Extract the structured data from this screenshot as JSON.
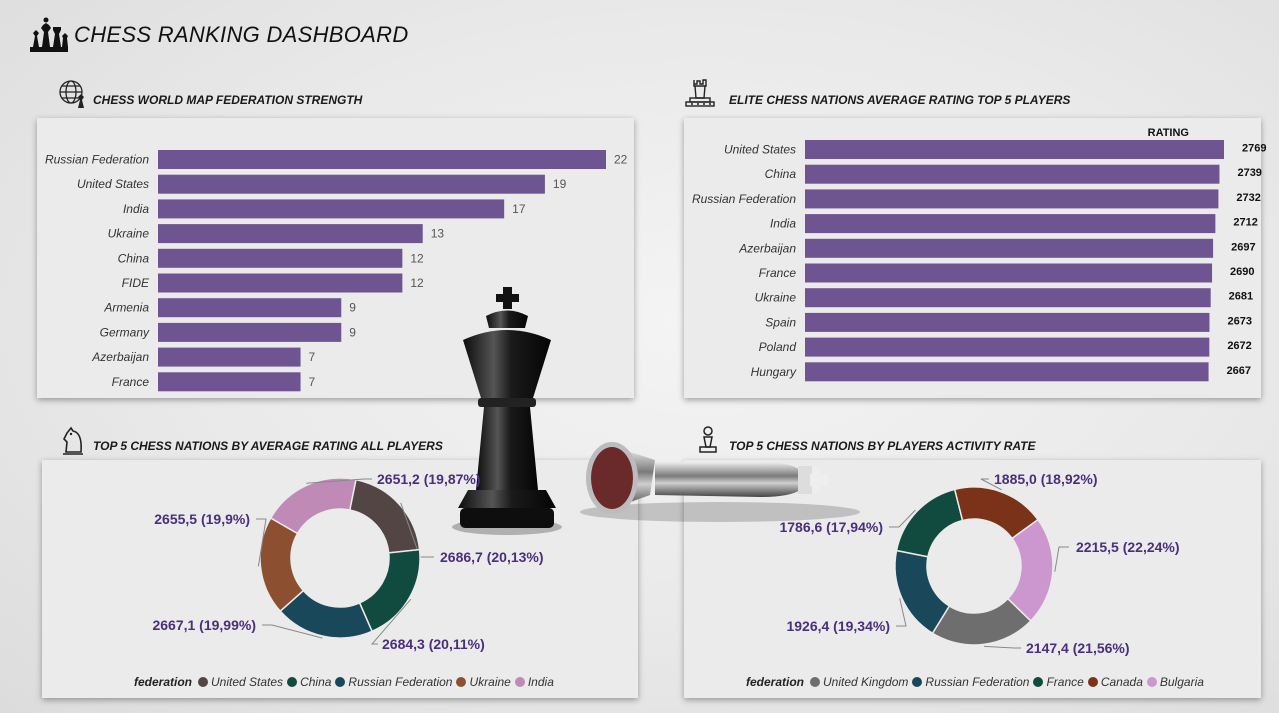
{
  "title": "CHESS RANKING DASHBOARD",
  "sections": {
    "s1": "CHESS WORLD MAP FEDERATION STRENGTH",
    "s2": "ELITE CHESS NATIONS AVERAGE RATING TOP 5 PLAYERS",
    "s3": "TOP 5 CHESS NATIONS BY AVERAGE RATING ALL PLAYERS",
    "s4": "TOP 5 CHESS NATIONS BY PLAYERS ACTIVITY RATE"
  },
  "icons": {
    "logo": "chess-pieces-icon",
    "s1": "globe-chess-icon",
    "s2": "rook-icon",
    "s3": "knight-icon",
    "s4": "pawn-icon"
  },
  "colors": {
    "bar": "#6e5592"
  },
  "chart_data": [
    {
      "type": "bar",
      "orientation": "horizontal",
      "categories": [
        "Russian Federation",
        "United States",
        "India",
        "Ukraine",
        "China",
        "FIDE",
        "Armenia",
        "Germany",
        "Azerbaijan",
        "France"
      ],
      "values": [
        22,
        19,
        17,
        13,
        12,
        12,
        9,
        9,
        7,
        7
      ]
    },
    {
      "type": "bar",
      "orientation": "horizontal",
      "value_header": "RATING",
      "categories": [
        "United States",
        "China",
        "Russian Federation",
        "India",
        "Azerbaijan",
        "France",
        "Ukraine",
        "Spain",
        "Poland",
        "Hungary"
      ],
      "values": [
        2769,
        2739,
        2732,
        2712,
        2697,
        2690,
        2681,
        2673,
        2672,
        2667
      ]
    },
    {
      "type": "pie",
      "variant": "donut",
      "legend_title": "federation",
      "slices": [
        {
          "name": "United States",
          "value": "2686,7",
          "pct": "20,13%",
          "color": "#544545"
        },
        {
          "name": "China",
          "value": "2684,3",
          "pct": "20,11%",
          "color": "#114a3e"
        },
        {
          "name": "Russian Federation",
          "value": "2667,1",
          "pct": "19,99%",
          "color": "#19485a"
        },
        {
          "name": "Ukraine",
          "value": "2655,5",
          "pct": "19,9%",
          "color": "#8c5030"
        },
        {
          "name": "India",
          "value": "2651,2",
          "pct": "19,87%",
          "color": "#c08ab7"
        }
      ]
    },
    {
      "type": "pie",
      "variant": "donut",
      "legend_title": "federation",
      "slices": [
        {
          "name": "Bulgaria",
          "value": "2215,5",
          "pct": "22,24%",
          "color": "#cc96cf"
        },
        {
          "name": "United Kingdom",
          "value": "2147,4",
          "pct": "21,56%",
          "color": "#6e6e6e"
        },
        {
          "name": "Russian Federation",
          "value": "1926,4",
          "pct": "19,34%",
          "color": "#19485a"
        },
        {
          "name": "France",
          "value": "1786,6",
          "pct": "17,94%",
          "color": "#114a3e"
        },
        {
          "name": "Canada",
          "value": "1885,0",
          "pct": "18,92%",
          "color": "#7a3218"
        }
      ],
      "legend_order": [
        "United Kingdom",
        "Russian Federation",
        "France",
        "Canada",
        "Bulgaria"
      ]
    }
  ]
}
